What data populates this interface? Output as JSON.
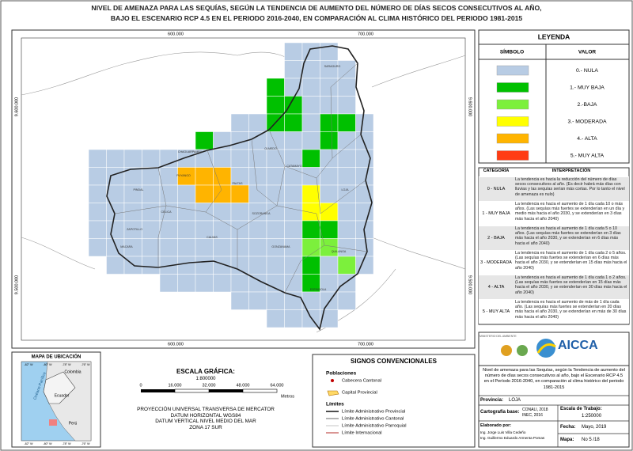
{
  "title": [
    "NIVEL DE AMENAZA PARA LAS SEQUÍAS, SEGÚN LA TENDENCIA DE AUMENTO DEL NÚMERO DE DÍAS SECOS CONSECUTIVOS AL AÑO,",
    "BAJO EL ESCENARIO RCP 4.5 EN EL PERIODO 2016-2040, EN COMPARACIÓN AL CLIMA HISTÓRICO DEL PERIODO 1981-2015"
  ],
  "map": {
    "x_labels": [
      "600.000",
      "700.000"
    ],
    "y_labels": [
      "9.600.000",
      "9.500.000"
    ],
    "places": [
      "SARAGURO",
      "CHAGUARPAMBA",
      "OLMEDO",
      "PALTAS",
      "CATAMAYO",
      "LOJA",
      "PUYANGO",
      "PINDAL",
      "CELICA",
      "ZAPOTILLO",
      "SOZORANGA",
      "MACARA",
      "CALVAS",
      "GONZANAMA",
      "QUILANGA",
      "ESPINDOLA"
    ]
  },
  "legend": {
    "title": "LEYENDA",
    "headers": [
      "SÍMBOLO",
      "VALOR"
    ],
    "items": [
      {
        "label": "0.- NULA",
        "color": "#b8cce4"
      },
      {
        "label": "1.- MUY BAJA",
        "color": "#00c000"
      },
      {
        "label": "2.-BAJA",
        "color": "#7cf03c"
      },
      {
        "label": "3.- MODERADA",
        "color": "#ffff00"
      },
      {
        "label": "4.- ALTA",
        "color": "#ffb400"
      },
      {
        "label": "5.- MUY ALTA",
        "color": "#ff3c14"
      }
    ]
  },
  "interpretation": {
    "headers": [
      "CATEGORÍA",
      "INTERPRETACIÓN"
    ],
    "rows": [
      [
        "0 - NULA",
        "La tendencia es hacia la reducción del número de días secos consecutivos al año. (Es decir habrá más días con lluvias y las sequías serían más cortas. Por lo tanto el nivel de amenaza es nulo)"
      ],
      [
        "1 - MUY BAJA",
        "La tendencia es hacia el aumento de 1 día cada 10 o más años. (Las sequías más fuertes se extenderían en un día y medio más hacia el año 2030, y se extenderían en 3 días más hacia el año 2040)"
      ],
      [
        "2 - BAJA",
        "La tendencia es hacia el aumento de 1 día cada 5 o 10 años. (Las sequías más fuertes se extenderían en 3 días más hacia el año 2030, y se extenderían en 6 días más hacia el año 2040)"
      ],
      [
        "3 - MODERADA",
        "La tendencia es hacia el aumento de 1 día cada 2 o 5 años. (Las sequías más fuertes se extenderían en 6 días más hacia el año 2030, y se extenderían en 15 días más hacia el año 2040)"
      ],
      [
        "4 - ALTA",
        "La tendencia es hacia el aumento de 1 día cada 1 o 2 años. (Las sequías más fuertes se extenderían en 15 días más hacia el año 2030, y se extenderían en 30 días más hacia el año 2040)"
      ],
      [
        "5 - MUY ALTA",
        "La tendencia es hacia el aumento de más de 1 día cada año. (Las sequías más fuertes se extenderían en 20 días más hacia el año 2030, y se extenderían en más de 30 días más hacia el año 2040)"
      ]
    ]
  },
  "logo": {
    "ministry": "MINISTERIO DEL AMBIENTE",
    "name": "AICCA"
  },
  "info": {
    "description": "Nivel de amenaza para las Sequías, según la Tendencia de aumento del número de días secos consecutivos al año, bajo el Escenario RCP 4.5 en el Período 2016-2040, en comparación al clima histórico del periodo 1981-2015",
    "province_label": "Provincia:",
    "province": "LOJA",
    "base_label": "Cartografía base:",
    "base": [
      "CONALI, 2018",
      "INEC, 2016"
    ],
    "scale_label": "Escala de Trabajo:",
    "scale": "1:250000",
    "author_label": "Elaborado por:",
    "authors": [
      "Ing. Jorge Luis Villa Cedeño",
      "Ing. Guillermo Eduardo Armenta Pomas"
    ],
    "date_label": "Fecha:",
    "date": "Mayo, 2019",
    "map_label": "Mapa:",
    "map_no": "No 5 /18"
  },
  "location_map": {
    "title": "MAPA DE UBICACIÓN",
    "lon_labels": [
      "-82° W",
      "-80° W",
      "-78° W",
      "-76° W"
    ],
    "countries": [
      "Colombia",
      "Ecuador",
      "Perú"
    ],
    "ocean": "Océano Pacífico"
  },
  "scale": {
    "title": "ESCALA GRÁFICA:",
    "ratio": "1:800000",
    "ticks": [
      "0",
      "16.000",
      "32.000",
      "48.000",
      "64.000"
    ],
    "unit": "Metros",
    "projection": [
      "PROYECCIÓN UNIVERSAL TRANSVERSA DE MERCATOR",
      "DATUM HORIZONTAL WGS84",
      "DATUM VERTICAL NIVEL MEDIO DEL MAR",
      "ZONA 17 SUR"
    ]
  },
  "signs": {
    "title": "SIGNOS CONVENCIONALES",
    "populations": "Poblaciones",
    "population_items": [
      "Cabecera Cantonal",
      "Capital Provincial"
    ],
    "limits": "Límites",
    "limit_items": [
      "Límite Administrativo Provincial",
      "Límite Administrativo Cantonal",
      "Límite Administrativo Parroquial",
      "Límite Internacional"
    ]
  }
}
